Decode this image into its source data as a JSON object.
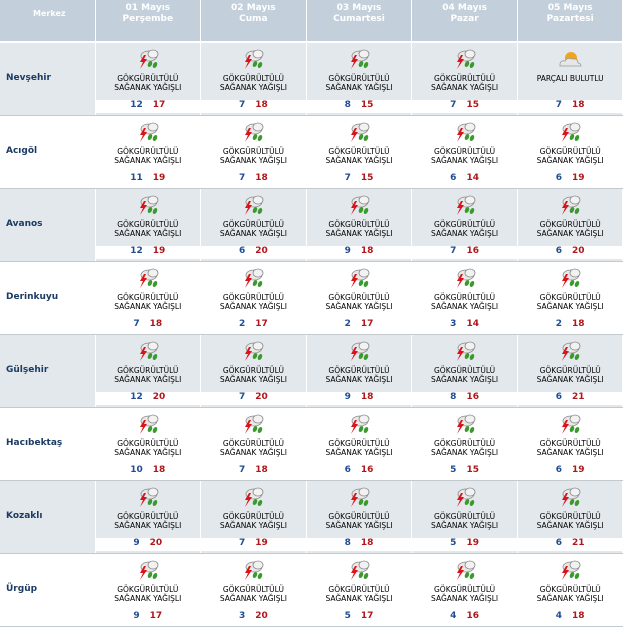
{
  "header": {
    "location_label": "Merkez",
    "days": [
      {
        "date": "01 Mayıs",
        "weekday": "Perşembe"
      },
      {
        "date": "02 Mayıs",
        "weekday": "Cuma"
      },
      {
        "date": "03 Mayıs",
        "weekday": "Cumartesi"
      },
      {
        "date": "04 Mayıs",
        "weekday": "Pazar"
      },
      {
        "date": "05 Mayıs",
        "weekday": "Pazartesi"
      }
    ]
  },
  "conditions": {
    "thunder": {
      "line1": "GÖKGÜRÜLTÜLÜ",
      "line2": "SAĞANAK YAĞIŞLI",
      "icon": "thunderstorm-icon"
    },
    "partly": {
      "line1": "PARÇALI BULUTLU",
      "line2": "",
      "icon": "partly-cloudy-icon"
    }
  },
  "colors": {
    "min": "#1f4c93",
    "max": "#b0171b",
    "header_bg": "#c3d0db",
    "alt_row": "#e3e8ed"
  },
  "rows": [
    {
      "city": "Nevşehir",
      "days": [
        {
          "cond": "thunder",
          "min": "12",
          "max": "17"
        },
        {
          "cond": "thunder",
          "min": "7",
          "max": "18"
        },
        {
          "cond": "thunder",
          "min": "8",
          "max": "15"
        },
        {
          "cond": "thunder",
          "min": "7",
          "max": "15"
        },
        {
          "cond": "partly",
          "min": "7",
          "max": "18"
        }
      ]
    },
    {
      "city": "Acıgöl",
      "days": [
        {
          "cond": "thunder",
          "min": "11",
          "max": "19"
        },
        {
          "cond": "thunder",
          "min": "7",
          "max": "18"
        },
        {
          "cond": "thunder",
          "min": "7",
          "max": "15"
        },
        {
          "cond": "thunder",
          "min": "6",
          "max": "14"
        },
        {
          "cond": "thunder",
          "min": "6",
          "max": "19"
        }
      ]
    },
    {
      "city": "Avanos",
      "days": [
        {
          "cond": "thunder",
          "min": "12",
          "max": "19"
        },
        {
          "cond": "thunder",
          "min": "6",
          "max": "20"
        },
        {
          "cond": "thunder",
          "min": "9",
          "max": "18"
        },
        {
          "cond": "thunder",
          "min": "7",
          "max": "16"
        },
        {
          "cond": "thunder",
          "min": "6",
          "max": "20"
        }
      ]
    },
    {
      "city": "Derinkuyu",
      "days": [
        {
          "cond": "thunder",
          "min": "7",
          "max": "18"
        },
        {
          "cond": "thunder",
          "min": "2",
          "max": "17"
        },
        {
          "cond": "thunder",
          "min": "2",
          "max": "17"
        },
        {
          "cond": "thunder",
          "min": "3",
          "max": "14"
        },
        {
          "cond": "thunder",
          "min": "2",
          "max": "18"
        }
      ]
    },
    {
      "city": "Gülşehir",
      "days": [
        {
          "cond": "thunder",
          "min": "12",
          "max": "20"
        },
        {
          "cond": "thunder",
          "min": "7",
          "max": "20"
        },
        {
          "cond": "thunder",
          "min": "9",
          "max": "18"
        },
        {
          "cond": "thunder",
          "min": "8",
          "max": "16"
        },
        {
          "cond": "thunder",
          "min": "6",
          "max": "21"
        }
      ]
    },
    {
      "city": "Hacıbektaş",
      "days": [
        {
          "cond": "thunder",
          "min": "10",
          "max": "18"
        },
        {
          "cond": "thunder",
          "min": "7",
          "max": "18"
        },
        {
          "cond": "thunder",
          "min": "6",
          "max": "16"
        },
        {
          "cond": "thunder",
          "min": "5",
          "max": "15"
        },
        {
          "cond": "thunder",
          "min": "6",
          "max": "19"
        }
      ]
    },
    {
      "city": "Kozaklı",
      "days": [
        {
          "cond": "thunder",
          "min": "9",
          "max": "20"
        },
        {
          "cond": "thunder",
          "min": "7",
          "max": "19"
        },
        {
          "cond": "thunder",
          "min": "8",
          "max": "18"
        },
        {
          "cond": "thunder",
          "min": "5",
          "max": "19"
        },
        {
          "cond": "thunder",
          "min": "6",
          "max": "21"
        }
      ]
    },
    {
      "city": "Ürgüp",
      "days": [
        {
          "cond": "thunder",
          "min": "9",
          "max": "17"
        },
        {
          "cond": "thunder",
          "min": "3",
          "max": "20"
        },
        {
          "cond": "thunder",
          "min": "5",
          "max": "17"
        },
        {
          "cond": "thunder",
          "min": "4",
          "max": "16"
        },
        {
          "cond": "thunder",
          "min": "4",
          "max": "18"
        }
      ]
    }
  ]
}
